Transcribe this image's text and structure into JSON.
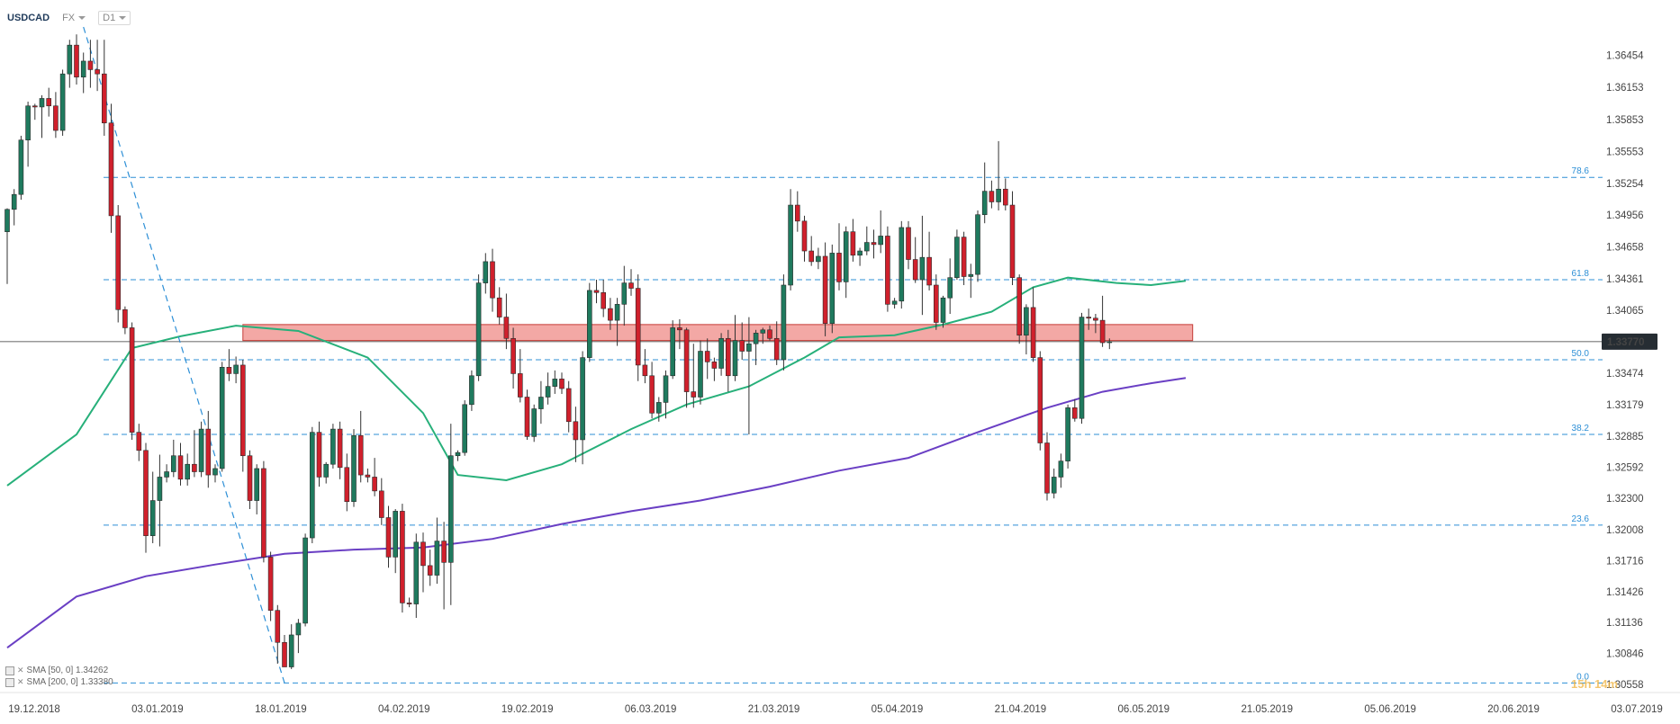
{
  "toolbar": {
    "symbol": "USDCAD",
    "market": "FX",
    "interval": "D1"
  },
  "price_axis": {
    "ticks": [
      "1.36454",
      "1.36153",
      "1.35853",
      "1.35553",
      "1.35254",
      "1.34956",
      "1.34658",
      "1.34361",
      "1.34065",
      "1.33770",
      "1.33474",
      "1.33179",
      "1.32885",
      "1.32592",
      "1.32300",
      "1.32008",
      "1.31716",
      "1.31426",
      "1.31136",
      "1.30846",
      "1.30558"
    ],
    "current_price": "1.33770",
    "current_price_color": "#262d33"
  },
  "date_axis": {
    "labels": [
      "19.12.2018",
      "03.01.2019",
      "18.01.2019",
      "04.02.2019",
      "19.02.2019",
      "06.03.2019",
      "21.03.2019",
      "05.04.2019",
      "21.04.2019",
      "06.05.2019",
      "21.05.2019",
      "05.06.2019",
      "20.06.2019",
      "03.07.2019"
    ]
  },
  "fibonacci": {
    "levels": [
      {
        "label": "78.6",
        "price": 1.3531
      },
      {
        "label": "61.8",
        "price": 1.3435
      },
      {
        "label": "50.0",
        "price": 1.336
      },
      {
        "label": "38.2",
        "price": 1.329
      },
      {
        "label": "23.6",
        "price": 1.3205
      },
      {
        "label": "0.0",
        "price": 1.3057
      }
    ],
    "color": "#2d8fd6"
  },
  "resistance_zone": {
    "from": 1.3378,
    "to": 1.3393,
    "color": "#e9605b"
  },
  "indicators": {
    "sma50": {
      "label": "SMA [50, 0] 1.34262",
      "color": "#27b07a"
    },
    "sma200": {
      "label": "SMA [200, 0] 1.33380",
      "color": "#6a3fc4"
    }
  },
  "candle_colors": {
    "up": "#1f7a5e",
    "down": "#d0202c"
  },
  "countdown": "15h 14m",
  "chart_data": {
    "type": "candlestick",
    "title": "USDCAD",
    "ylim": [
      1.3048,
      1.3672
    ],
    "candles": [
      [
        1.348,
        1.3502,
        1.3431,
        1.3501
      ],
      [
        1.3501,
        1.352,
        1.3486,
        1.3515
      ],
      [
        1.3515,
        1.357,
        1.351,
        1.3566
      ],
      [
        1.3566,
        1.3602,
        1.3541,
        1.3598
      ],
      [
        1.3598,
        1.36,
        1.3585,
        1.3597
      ],
      [
        1.3597,
        1.3608,
        1.3568,
        1.3605
      ],
      [
        1.3605,
        1.3615,
        1.3588,
        1.3598
      ],
      [
        1.3598,
        1.3611,
        1.3568,
        1.3575
      ],
      [
        1.3575,
        1.3632,
        1.357,
        1.3628
      ],
      [
        1.3628,
        1.366,
        1.3615,
        1.3655
      ],
      [
        1.3655,
        1.3665,
        1.3618,
        1.3625
      ],
      [
        1.3625,
        1.3648,
        1.361,
        1.364
      ],
      [
        1.364,
        1.366,
        1.3615,
        1.3632
      ],
      [
        1.3632,
        1.366,
        1.3612,
        1.3628
      ],
      [
        1.3628,
        1.366,
        1.357,
        1.3582
      ],
      [
        1.3582,
        1.36,
        1.3479,
        1.3495
      ],
      [
        1.3495,
        1.3505,
        1.3395,
        1.3407
      ],
      [
        1.3407,
        1.341,
        1.3384,
        1.339
      ],
      [
        1.339,
        1.3395,
        1.3285,
        1.3292
      ],
      [
        1.3292,
        1.33,
        1.3265,
        1.3275
      ],
      [
        1.3275,
        1.3282,
        1.3179,
        1.3195
      ],
      [
        1.3195,
        1.3255,
        1.3188,
        1.3228
      ],
      [
        1.3228,
        1.3271,
        1.3185,
        1.325
      ],
      [
        1.325,
        1.3262,
        1.3245,
        1.3255
      ],
      [
        1.3255,
        1.3285,
        1.325,
        1.327
      ],
      [
        1.327,
        1.3282,
        1.3242,
        1.3248
      ],
      [
        1.3248,
        1.3272,
        1.3242,
        1.3262
      ],
      [
        1.3262,
        1.3294,
        1.325,
        1.3255
      ],
      [
        1.3255,
        1.3302,
        1.325,
        1.3295
      ],
      [
        1.3295,
        1.3312,
        1.324,
        1.3252
      ],
      [
        1.3252,
        1.3262,
        1.3245,
        1.3258
      ],
      [
        1.3258,
        1.3358,
        1.3255,
        1.3353
      ],
      [
        1.3353,
        1.337,
        1.334,
        1.3347
      ],
      [
        1.3347,
        1.3363,
        1.3338,
        1.3355
      ],
      [
        1.3355,
        1.336,
        1.3255,
        1.327
      ],
      [
        1.327,
        1.3275,
        1.322,
        1.3228
      ],
      [
        1.3228,
        1.3262,
        1.3215,
        1.3258
      ],
      [
        1.3258,
        1.3265,
        1.317,
        1.3175
      ],
      [
        1.3175,
        1.318,
        1.3115,
        1.3125
      ],
      [
        1.3125,
        1.313,
        1.3075,
        1.3095
      ],
      [
        1.3095,
        1.3102,
        1.3072,
        1.3072
      ],
      [
        1.3072,
        1.3112,
        1.307,
        1.3102
      ],
      [
        1.3102,
        1.3117,
        1.3085,
        1.3113
      ],
      [
        1.3113,
        1.3197,
        1.311,
        1.3193
      ],
      [
        1.3193,
        1.3297,
        1.3188,
        1.3292
      ],
      [
        1.3292,
        1.3302,
        1.3241,
        1.325
      ],
      [
        1.325,
        1.3264,
        1.3244,
        1.3262
      ],
      [
        1.3262,
        1.33,
        1.3258,
        1.3295
      ],
      [
        1.3295,
        1.3302,
        1.3248,
        1.3259
      ],
      [
        1.3259,
        1.3272,
        1.3218,
        1.3227
      ],
      [
        1.3227,
        1.3295,
        1.3222,
        1.3289
      ],
      [
        1.3289,
        1.3312,
        1.3245,
        1.3252
      ],
      [
        1.3252,
        1.3258,
        1.3245,
        1.325
      ],
      [
        1.325,
        1.3268,
        1.3232,
        1.3237
      ],
      [
        1.3237,
        1.3249,
        1.3205,
        1.3212
      ],
      [
        1.3212,
        1.3223,
        1.3165,
        1.3175
      ],
      [
        1.3175,
        1.322,
        1.316,
        1.3218
      ],
      [
        1.3218,
        1.3225,
        1.3123,
        1.3132
      ],
      [
        1.3132,
        1.3137,
        1.3128,
        1.3131
      ],
      [
        1.3131,
        1.3197,
        1.3118,
        1.3189
      ],
      [
        1.3189,
        1.3198,
        1.3142,
        1.3167
      ],
      [
        1.3167,
        1.3182,
        1.3148,
        1.3158
      ],
      [
        1.3158,
        1.3212,
        1.315,
        1.319
      ],
      [
        1.319,
        1.3208,
        1.3126,
        1.317
      ],
      [
        1.317,
        1.33,
        1.313,
        1.327
      ],
      [
        1.327,
        1.3275,
        1.3265,
        1.3273
      ],
      [
        1.3273,
        1.3322,
        1.327,
        1.3318
      ],
      [
        1.3318,
        1.335,
        1.3312,
        1.3345
      ],
      [
        1.3345,
        1.344,
        1.334,
        1.3432
      ],
      [
        1.3432,
        1.346,
        1.3422,
        1.3452
      ],
      [
        1.3452,
        1.3464,
        1.3405,
        1.3418
      ],
      [
        1.3418,
        1.3428,
        1.3393,
        1.34
      ],
      [
        1.34,
        1.3422,
        1.337,
        1.338
      ],
      [
        1.338,
        1.339,
        1.3333,
        1.3347
      ],
      [
        1.3347,
        1.337,
        1.332,
        1.3325
      ],
      [
        1.3325,
        1.3332,
        1.3285,
        1.3288
      ],
      [
        1.3288,
        1.3318,
        1.3283,
        1.3314
      ],
      [
        1.3314,
        1.334,
        1.33,
        1.3325
      ],
      [
        1.3325,
        1.3348,
        1.3318,
        1.3335
      ],
      [
        1.3335,
        1.335,
        1.3328,
        1.3342
      ],
      [
        1.3342,
        1.3348,
        1.3328,
        1.3333
      ],
      [
        1.3333,
        1.334,
        1.3292,
        1.3302
      ],
      [
        1.3302,
        1.3316,
        1.3264,
        1.3285
      ],
      [
        1.3285,
        1.3368,
        1.3262,
        1.3362
      ],
      [
        1.3362,
        1.3432,
        1.3358,
        1.3425
      ],
      [
        1.3425,
        1.3435,
        1.3413,
        1.3423
      ],
      [
        1.3423,
        1.3435,
        1.34,
        1.3408
      ],
      [
        1.3408,
        1.3418,
        1.3388,
        1.3397
      ],
      [
        1.3397,
        1.3418,
        1.3373,
        1.3412
      ],
      [
        1.3412,
        1.3448,
        1.3392,
        1.3432
      ],
      [
        1.3432,
        1.3445,
        1.342,
        1.3427
      ],
      [
        1.3427,
        1.344,
        1.334,
        1.3355
      ],
      [
        1.3355,
        1.337,
        1.3338,
        1.3345
      ],
      [
        1.3345,
        1.3358,
        1.3305,
        1.331
      ],
      [
        1.331,
        1.3325,
        1.3302,
        1.332
      ],
      [
        1.332,
        1.335,
        1.3305,
        1.3345
      ],
      [
        1.3345,
        1.3397,
        1.3342,
        1.339
      ],
      [
        1.339,
        1.3398,
        1.337,
        1.3388
      ],
      [
        1.3388,
        1.339,
        1.3315,
        1.333
      ],
      [
        1.333,
        1.3375,
        1.3315,
        1.3325
      ],
      [
        1.3325,
        1.3378,
        1.3318,
        1.3368
      ],
      [
        1.3368,
        1.338,
        1.3342,
        1.3358
      ],
      [
        1.3358,
        1.3362,
        1.334,
        1.3352
      ],
      [
        1.3352,
        1.3385,
        1.3345,
        1.338
      ],
      [
        1.338,
        1.3388,
        1.333,
        1.3345
      ],
      [
        1.3345,
        1.3402,
        1.334,
        1.3378
      ],
      [
        1.3378,
        1.3395,
        1.336,
        1.3368
      ],
      [
        1.3368,
        1.34,
        1.329,
        1.3375
      ],
      [
        1.3375,
        1.3388,
        1.3355,
        1.3385
      ],
      [
        1.3385,
        1.339,
        1.3375,
        1.3388
      ],
      [
        1.3388,
        1.3392,
        1.3378,
        1.338
      ],
      [
        1.338,
        1.3396,
        1.3355,
        1.336
      ],
      [
        1.336,
        1.344,
        1.335,
        1.343
      ],
      [
        1.343,
        1.352,
        1.3425,
        1.3505
      ],
      [
        1.3505,
        1.3518,
        1.348,
        1.349
      ],
      [
        1.349,
        1.3495,
        1.3452,
        1.3462
      ],
      [
        1.3462,
        1.3476,
        1.3448,
        1.3452
      ],
      [
        1.3452,
        1.3465,
        1.3445,
        1.3457
      ],
      [
        1.3457,
        1.347,
        1.3382,
        1.3394
      ],
      [
        1.3394,
        1.3468,
        1.3385,
        1.346
      ],
      [
        1.346,
        1.3488,
        1.3425,
        1.3433
      ],
      [
        1.3433,
        1.3485,
        1.3418,
        1.348
      ],
      [
        1.348,
        1.3492,
        1.3452,
        1.3458
      ],
      [
        1.3458,
        1.3465,
        1.3448,
        1.3462
      ],
      [
        1.3462,
        1.3485,
        1.3458,
        1.347
      ],
      [
        1.347,
        1.3482,
        1.3455,
        1.3468
      ],
      [
        1.3468,
        1.35,
        1.346,
        1.3476
      ],
      [
        1.3476,
        1.3485,
        1.3405,
        1.3412
      ],
      [
        1.3412,
        1.3418,
        1.3408,
        1.3415
      ],
      [
        1.3415,
        1.349,
        1.3408,
        1.3484
      ],
      [
        1.3484,
        1.349,
        1.3445,
        1.3454
      ],
      [
        1.3454,
        1.3475,
        1.3432,
        1.3435
      ],
      [
        1.3435,
        1.3495,
        1.3402,
        1.3456
      ],
      [
        1.3456,
        1.348,
        1.3425,
        1.343
      ],
      [
        1.343,
        1.344,
        1.3388,
        1.3395
      ],
      [
        1.3395,
        1.342,
        1.339,
        1.3418
      ],
      [
        1.3418,
        1.3455,
        1.3403,
        1.3437
      ],
      [
        1.3437,
        1.3482,
        1.3435,
        1.3475
      ],
      [
        1.3475,
        1.348,
        1.343,
        1.3438
      ],
      [
        1.3438,
        1.345,
        1.3418,
        1.344
      ],
      [
        1.344,
        1.35,
        1.3433,
        1.3496
      ],
      [
        1.3496,
        1.3545,
        1.3488,
        1.3518
      ],
      [
        1.3518,
        1.3528,
        1.3502,
        1.3508
      ],
      [
        1.3508,
        1.3565,
        1.35,
        1.352
      ],
      [
        1.352,
        1.353,
        1.35,
        1.3505
      ],
      [
        1.3505,
        1.3518,
        1.343,
        1.3437
      ],
      [
        1.3437,
        1.344,
        1.3375,
        1.3383
      ],
      [
        1.3383,
        1.3412,
        1.3365,
        1.3409
      ],
      [
        1.3409,
        1.3428,
        1.3358,
        1.3362
      ],
      [
        1.3362,
        1.3368,
        1.3275,
        1.3282
      ],
      [
        1.3282,
        1.3292,
        1.3228,
        1.3235
      ],
      [
        1.3235,
        1.3258,
        1.323,
        1.325
      ],
      [
        1.325,
        1.3272,
        1.324,
        1.3265
      ],
      [
        1.3265,
        1.3318,
        1.3258,
        1.3315
      ],
      [
        1.3315,
        1.3323,
        1.3302,
        1.3305
      ],
      [
        1.3305,
        1.3404,
        1.33,
        1.34
      ],
      [
        1.34,
        1.3408,
        1.3388,
        1.3399
      ],
      [
        1.3399,
        1.3403,
        1.3385,
        1.3397
      ],
      [
        1.3397,
        1.342,
        1.3372,
        1.3376
      ],
      [
        1.3376,
        1.338,
        1.337,
        1.3377
      ]
    ],
    "sma50_values": [
      [
        0,
        1.3242
      ],
      [
        10,
        1.329
      ],
      [
        18,
        1.3371
      ],
      [
        25,
        1.3382
      ],
      [
        33,
        1.3392
      ],
      [
        42,
        1.3387
      ],
      [
        52,
        1.3362
      ],
      [
        60,
        1.331
      ],
      [
        65,
        1.3252
      ],
      [
        72,
        1.3247
      ],
      [
        80,
        1.3262
      ],
      [
        90,
        1.3295
      ],
      [
        98,
        1.3318
      ],
      [
        107,
        1.3335
      ],
      [
        115,
        1.3362
      ],
      [
        120,
        1.3381
      ],
      [
        128,
        1.3383
      ],
      [
        135,
        1.3393
      ],
      [
        142,
        1.3405
      ],
      [
        148,
        1.3428
      ],
      [
        153,
        1.3437
      ],
      [
        160,
        1.3432
      ],
      [
        165,
        1.343
      ],
      [
        170,
        1.3434
      ]
    ],
    "sma200_values": [
      [
        0,
        1.309
      ],
      [
        10,
        1.3138
      ],
      [
        20,
        1.3157
      ],
      [
        30,
        1.3168
      ],
      [
        40,
        1.3178
      ],
      [
        50,
        1.3182
      ],
      [
        60,
        1.3184
      ],
      [
        70,
        1.3192
      ],
      [
        80,
        1.3206
      ],
      [
        90,
        1.3218
      ],
      [
        100,
        1.3228
      ],
      [
        110,
        1.3241
      ],
      [
        120,
        1.3256
      ],
      [
        130,
        1.3268
      ],
      [
        140,
        1.3292
      ],
      [
        150,
        1.3315
      ],
      [
        158,
        1.333
      ],
      [
        165,
        1.3338
      ],
      [
        170,
        1.3343
      ]
    ],
    "trendline": {
      "from": [
        11,
        1.3672
      ],
      "to": [
        40,
        1.3057
      ]
    }
  }
}
